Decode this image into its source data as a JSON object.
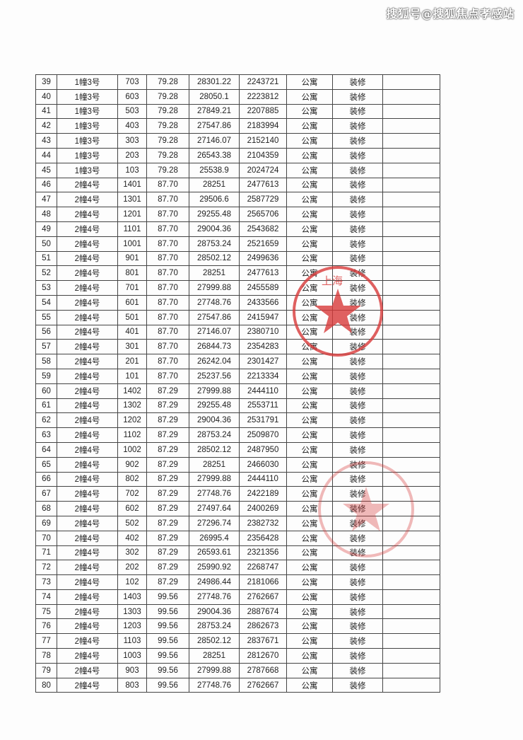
{
  "watermark": "搜狐号@搜狐焦点孝感站",
  "stamp_color": "#d83a3a",
  "stamp_text": "上海",
  "rows": [
    [
      "39",
      "1幢3号",
      "703",
      "79.28",
      "28301.22",
      "2243721",
      "公寓",
      "装修",
      ""
    ],
    [
      "40",
      "1幢3号",
      "603",
      "79.28",
      "28050.1",
      "2223812",
      "公寓",
      "装修",
      ""
    ],
    [
      "41",
      "1幢3号",
      "503",
      "79.28",
      "27849.21",
      "2207885",
      "公寓",
      "装修",
      ""
    ],
    [
      "42",
      "1幢3号",
      "403",
      "79.28",
      "27547.86",
      "2183994",
      "公寓",
      "装修",
      ""
    ],
    [
      "43",
      "1幢3号",
      "303",
      "79.28",
      "27146.07",
      "2152140",
      "公寓",
      "装修",
      ""
    ],
    [
      "44",
      "1幢3号",
      "203",
      "79.28",
      "26543.38",
      "2104359",
      "公寓",
      "装修",
      ""
    ],
    [
      "45",
      "1幢3号",
      "103",
      "79.28",
      "25538.9",
      "2024724",
      "公寓",
      "装修",
      ""
    ],
    [
      "46",
      "2幢4号",
      "1401",
      "87.70",
      "28251",
      "2477613",
      "公寓",
      "装修",
      ""
    ],
    [
      "47",
      "2幢4号",
      "1301",
      "87.70",
      "29506.6",
      "2587729",
      "公寓",
      "装修",
      ""
    ],
    [
      "48",
      "2幢4号",
      "1201",
      "87.70",
      "29255.48",
      "2565706",
      "公寓",
      "装修",
      ""
    ],
    [
      "49",
      "2幢4号",
      "1101",
      "87.70",
      "29004.36",
      "2543682",
      "公寓",
      "装修",
      ""
    ],
    [
      "50",
      "2幢4号",
      "1001",
      "87.70",
      "28753.24",
      "2521659",
      "公寓",
      "装修",
      ""
    ],
    [
      "51",
      "2幢4号",
      "901",
      "87.70",
      "28502.12",
      "2499636",
      "公寓",
      "装修",
      ""
    ],
    [
      "52",
      "2幢4号",
      "801",
      "87.70",
      "28251",
      "2477613",
      "公寓",
      "装修",
      ""
    ],
    [
      "53",
      "2幢4号",
      "701",
      "87.70",
      "27999.88",
      "2455589",
      "公寓",
      "装修",
      ""
    ],
    [
      "54",
      "2幢4号",
      "601",
      "87.70",
      "27748.76",
      "2433566",
      "公寓",
      "装修",
      ""
    ],
    [
      "55",
      "2幢4号",
      "501",
      "87.70",
      "27547.86",
      "2415947",
      "公寓",
      "装修",
      ""
    ],
    [
      "56",
      "2幢4号",
      "401",
      "87.70",
      "27146.07",
      "2380710",
      "公寓",
      "装修",
      ""
    ],
    [
      "57",
      "2幢4号",
      "301",
      "87.70",
      "26844.73",
      "2354283",
      "公寓",
      "装修",
      ""
    ],
    [
      "58",
      "2幢4号",
      "201",
      "87.70",
      "26242.04",
      "2301427",
      "公寓",
      "装修",
      ""
    ],
    [
      "59",
      "2幢4号",
      "101",
      "87.70",
      "25237.56",
      "2213334",
      "公寓",
      "装修",
      ""
    ],
    [
      "60",
      "2幢4号",
      "1402",
      "87.29",
      "27999.88",
      "2444110",
      "公寓",
      "装修",
      ""
    ],
    [
      "61",
      "2幢4号",
      "1302",
      "87.29",
      "29255.48",
      "2553711",
      "公寓",
      "装修",
      ""
    ],
    [
      "62",
      "2幢4号",
      "1202",
      "87.29",
      "29004.36",
      "2531791",
      "公寓",
      "装修",
      ""
    ],
    [
      "63",
      "2幢4号",
      "1102",
      "87.29",
      "28753.24",
      "2509870",
      "公寓",
      "装修",
      ""
    ],
    [
      "64",
      "2幢4号",
      "1002",
      "87.29",
      "28502.12",
      "2487950",
      "公寓",
      "装修",
      ""
    ],
    [
      "65",
      "2幢4号",
      "902",
      "87.29",
      "28251",
      "2466030",
      "公寓",
      "装修",
      ""
    ],
    [
      "66",
      "2幢4号",
      "802",
      "87.29",
      "27999.88",
      "2444110",
      "公寓",
      "装修",
      ""
    ],
    [
      "67",
      "2幢4号",
      "702",
      "87.29",
      "27748.76",
      "2422189",
      "公寓",
      "装修",
      ""
    ],
    [
      "68",
      "2幢4号",
      "602",
      "87.29",
      "27497.64",
      "2400269",
      "公寓",
      "装修",
      ""
    ],
    [
      "69",
      "2幢4号",
      "502",
      "87.29",
      "27296.74",
      "2382732",
      "公寓",
      "装修",
      ""
    ],
    [
      "70",
      "2幢4号",
      "402",
      "87.29",
      "26995.4",
      "2356428",
      "公寓",
      "装修",
      ""
    ],
    [
      "71",
      "2幢4号",
      "302",
      "87.29",
      "26593.61",
      "2321356",
      "公寓",
      "装修",
      ""
    ],
    [
      "72",
      "2幢4号",
      "202",
      "87.29",
      "25990.92",
      "2268747",
      "公寓",
      "装修",
      ""
    ],
    [
      "73",
      "2幢4号",
      "102",
      "87.29",
      "24986.44",
      "2181066",
      "公寓",
      "装修",
      ""
    ],
    [
      "74",
      "2幢4号",
      "1403",
      "99.56",
      "27748.76",
      "2762667",
      "公寓",
      "装修",
      ""
    ],
    [
      "75",
      "2幢4号",
      "1303",
      "99.56",
      "29004.36",
      "2887674",
      "公寓",
      "装修",
      ""
    ],
    [
      "76",
      "2幢4号",
      "1203",
      "99.56",
      "28753.24",
      "2862673",
      "公寓",
      "装修",
      ""
    ],
    [
      "77",
      "2幢4号",
      "1103",
      "99.56",
      "28502.12",
      "2837671",
      "公寓",
      "装修",
      ""
    ],
    [
      "78",
      "2幢4号",
      "1003",
      "99.56",
      "28251",
      "2812670",
      "公寓",
      "装修",
      ""
    ],
    [
      "79",
      "2幢4号",
      "903",
      "99.56",
      "27999.88",
      "2787668",
      "公寓",
      "装修",
      ""
    ],
    [
      "80",
      "2幢4号",
      "803",
      "99.56",
      "27748.76",
      "2762667",
      "公寓",
      "装修",
      ""
    ]
  ]
}
